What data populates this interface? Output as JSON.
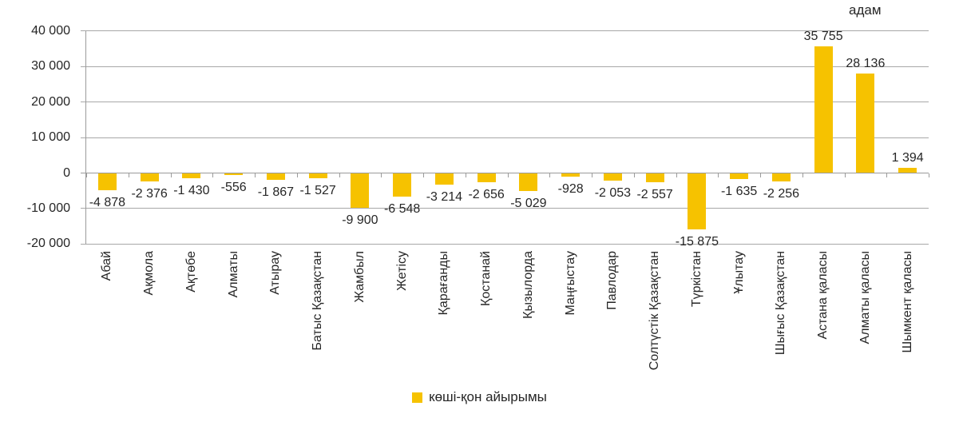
{
  "chart_data": {
    "type": "bar",
    "title": "",
    "unit": "адам",
    "series_name": "көші-қон айырымы",
    "legend_position": "bottom",
    "grid": true,
    "categories": [
      "Абай",
      "Ақмола",
      "Ақтөбе",
      "Алматы",
      "Атырау",
      "Батыс Қазақстан",
      "Жамбыл",
      "Жетісу",
      "Қарағанды",
      "Қостанай",
      "Қызылорда",
      "Маңғыстау",
      "Павлодар",
      "Солтүстік Қазақстан",
      "Түркістан",
      "Ұлытау",
      "Шығыс Қазақстан",
      "Астана қаласы",
      "Алматы қаласы",
      "Шымкент қаласы"
    ],
    "values": [
      -4878,
      -2376,
      -1430,
      -556,
      -1867,
      -1527,
      -9900,
      -6548,
      -3214,
      -2656,
      -5029,
      -928,
      -2053,
      -2557,
      -15875,
      -1635,
      -2256,
      35755,
      28136,
      1394
    ],
    "value_labels": [
      "-4 878",
      "-2 376",
      "-1 430",
      "-556",
      "-1 867",
      "-1 527",
      "-9 900",
      "-6 548",
      "-3 214",
      "-2 656",
      "-5 029",
      "-928",
      "-2 053",
      "-2 557",
      "-15 875",
      "-1 635",
      "-2 256",
      "35 755",
      "28 136",
      "1 394"
    ],
    "y_tick_values": [
      40000,
      30000,
      20000,
      10000,
      0,
      -10000,
      -20000
    ],
    "y_tick_labels": [
      "40 000",
      "30 000",
      "20 000",
      "10 000",
      "0",
      "-10 000",
      "-20 000"
    ],
    "ylim": [
      -20000,
      40000
    ],
    "colors": {
      "bar": "#F6C200",
      "grid": "#A8A8A8",
      "axis": "#9B9B9B",
      "text": "#262626"
    }
  }
}
